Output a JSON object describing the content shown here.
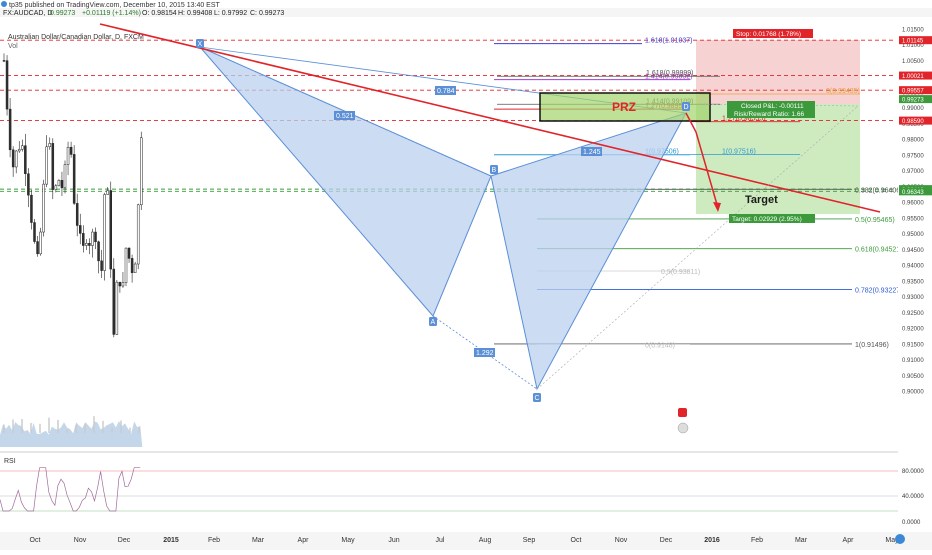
{
  "header": {
    "publisher": "tp35 published on TradingView.com, December 10, 2015 13:40 EST",
    "symbol_line": {
      "symbol": "FX:AUDCAD, D",
      "last": "0.99273",
      "change": "+0.01119 (+1.14%)",
      "open": "O: 0.98154",
      "high": "H: 0.99408",
      "low": "L: 0.97992",
      "close": "C: 0.99273"
    },
    "title": "Australian Dollar/Canadian Dollar, D, FXCM",
    "vol_label": "Vol",
    "brand": "TradingView"
  },
  "colors": {
    "up": "#2f2f2f",
    "down": "#3a3a3a",
    "pattern_fill": "#b9d0ef",
    "pattern_line": "#5b8fd6",
    "trendline": "#e0242a",
    "dashed_red": "#e0242a",
    "dashed_green": "#3c9a3c",
    "profit_zone": "#c6e8b4",
    "loss_zone": "#f6caca",
    "prz": "#a3d36b",
    "volume": "#9dbcdc",
    "rsi_line": "#a06b9a"
  },
  "annotations": {
    "prz": "PRZ",
    "target": "Target",
    "stop": "Stop: 0.01768 (1.78%)",
    "closed_pl": "Closed P&L: -0.00111",
    "risk_reward": "Risk/Reward Ratio: 1.66",
    "target_box": "Target: 0.02929 (2.95%)",
    "points": {
      "x": "X",
      "a": "A",
      "b": "B",
      "c": "C",
      "d": "D"
    },
    "ratios": {
      "xa_ab": "0.521",
      "xb": "0.784",
      "bc": "1.245",
      "ac": "1.292"
    },
    "fib_xa": [
      {
        "label": "1.618(1.01037)",
        "price": 1.01037
      },
      {
        "label": "1.414(0.99892)",
        "price": 0.99892
      },
      {
        "label": "1.27(0.98955)",
        "price": 0.98955
      },
      {
        "label": "1(0.97506)",
        "price": 0.97506
      }
    ],
    "fib_bc": [
      {
        "label": "1.618(0.99999)",
        "price": 0.99999
      },
      {
        "label": "1.414(0.99109)",
        "price": 0.99109
      },
      {
        "label": "1.27(0.98555)",
        "price": 0.98555
      },
      {
        "label": "1(0.97516)",
        "price": 0.97516
      },
      {
        "label": "0(0.99435)",
        "price": 0.99435
      }
    ],
    "fib_retr": [
      {
        "label": "0.382(0.96406)",
        "price": 0.96406
      },
      {
        "label": "0.5(0.95465)",
        "price": 0.95465
      },
      {
        "label": "0.618(0.94521)",
        "price": 0.94521
      },
      {
        "label": "0.782(0.93227)",
        "price": 0.93227
      },
      {
        "label": "1(0.91496)",
        "price": 0.91496
      }
    ],
    "faded": [
      {
        "label": "0.5(0.93811)",
        "price": 0.93811
      },
      {
        "label": "0(0.9148)",
        "price": 0.9148
      }
    ]
  },
  "chart_data": {
    "type": "candlestick",
    "instrument": "AUD/CAD",
    "interval": "D",
    "ylim": [
      0.9,
      1.015
    ],
    "price_ticks": [
      "1.01500",
      "1.01000",
      "1.00500",
      "1.00000",
      "0.99500",
      "0.99000",
      "0.98500",
      "0.98000",
      "0.97500",
      "0.97000",
      "0.96500",
      "0.96000",
      "0.95500",
      "0.95000",
      "0.94500",
      "0.94000",
      "0.93500",
      "0.93000",
      "0.92500",
      "0.92000",
      "0.91500",
      "0.91000",
      "0.90500",
      "0.90000"
    ],
    "price_tags": [
      {
        "label": "1.01145",
        "price": 1.01145,
        "color": "#e0242a"
      },
      {
        "label": "1.00021",
        "price": 1.00021,
        "color": "#e0242a"
      },
      {
        "label": "0.99557",
        "price": 0.99557,
        "color": "#e0242a"
      },
      {
        "label": "0.99273",
        "price": 0.99273,
        "color": "#3c9a3c"
      },
      {
        "label": "0.98590",
        "price": 0.9859,
        "color": "#e0242a"
      },
      {
        "label": "0.96413",
        "price": 0.96413,
        "color": "#3c9a3c"
      },
      {
        "label": "0.96343",
        "price": 0.96343,
        "color": "#3c9a3c"
      }
    ],
    "x_ticks": [
      "Oct",
      "Nov",
      "Dec",
      "2015",
      "Feb",
      "Mar",
      "Apr",
      "May",
      "Jun",
      "Jul",
      "Aug",
      "Sep",
      "Oct",
      "Nov",
      "Dec",
      "2016",
      "Feb",
      "Mar",
      "Apr",
      "May"
    ],
    "x_tick_bold": [
      "2015",
      "2016"
    ],
    "price_path": [
      [
        "2014-09-08",
        1.005
      ],
      [
        "2014-09-22",
        0.985
      ],
      [
        "2014-10-06",
        0.971
      ],
      [
        "2014-10-20",
        0.976
      ],
      [
        "2014-11-03",
        0.98
      ],
      [
        "2014-11-17",
        0.972
      ],
      [
        "2014-12-01",
        0.962
      ],
      [
        "2014-12-15",
        0.948
      ],
      [
        "2014-12-29",
        0.94
      ],
      [
        "2015-01-12",
        0.956
      ],
      [
        "2015-01-22",
        0.972
      ],
      [
        "2015-01-29",
        0.983
      ],
      [
        "2015-02-05",
        0.978
      ],
      [
        "2015-02-19",
        0.96
      ],
      [
        "2015-03-05",
        0.968
      ],
      [
        "2015-03-19",
        0.965
      ],
      [
        "2015-04-02",
        0.971
      ],
      [
        "2015-04-13",
        0.983
      ],
      [
        "2015-04-27",
        0.962
      ],
      [
        "2015-05-11",
        0.952
      ],
      [
        "2015-05-25",
        0.943
      ],
      [
        "2015-06-08",
        0.95
      ],
      [
        "2015-06-22",
        0.947
      ],
      [
        "2015-07-06",
        0.952
      ],
      [
        "2015-07-20",
        0.94
      ],
      [
        "2015-07-31",
        0.938
      ],
      [
        "2015-08-10",
        0.972
      ],
      [
        "2015-08-21",
        0.956
      ],
      [
        "2015-09-07",
        0.916
      ],
      [
        "2015-09-21",
        0.94
      ],
      [
        "2015-10-05",
        0.93
      ],
      [
        "2015-10-19",
        0.948
      ],
      [
        "2015-11-02",
        0.938
      ],
      [
        "2015-11-16",
        0.942
      ],
      [
        "2015-11-30",
        0.964
      ],
      [
        "2015-12-10",
        0.9927
      ]
    ],
    "rsi": {
      "levels": [
        80,
        40,
        0
      ],
      "tick_labels": [
        "80.0000",
        "40.0000",
        "0.0000"
      ]
    }
  }
}
